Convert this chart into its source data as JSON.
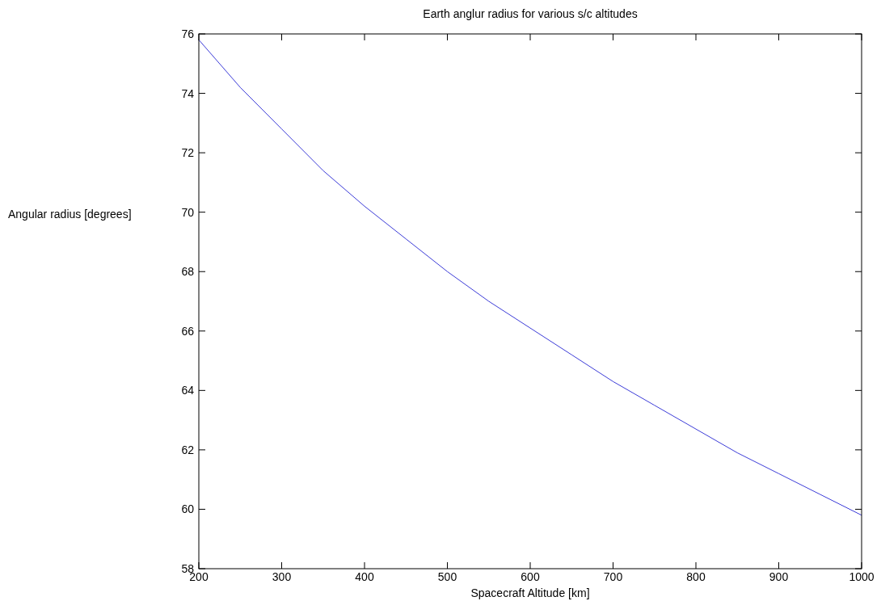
{
  "chart_data": {
    "type": "line",
    "title": "Earth anglur radius for various s/c altitudes",
    "xlabel": "Spacecraft Altitude [km]",
    "ylabel": "Angular radius [degrees]",
    "x": [
      200,
      250,
      300,
      350,
      400,
      450,
      500,
      550,
      600,
      650,
      700,
      750,
      800,
      850,
      900,
      950,
      1000
    ],
    "series": [
      {
        "color": "#3c3cd8",
        "values": [
          75.8,
          74.2,
          72.8,
          71.4,
          70.2,
          69.1,
          68.0,
          67.0,
          66.1,
          65.2,
          64.3,
          63.5,
          62.7,
          61.9,
          61.2,
          60.5,
          59.8
        ]
      }
    ],
    "xlim": [
      200,
      1000
    ],
    "ylim": [
      58,
      76
    ],
    "xticks": [
      200,
      300,
      400,
      500,
      600,
      700,
      800,
      900,
      1000
    ],
    "yticks": [
      58,
      60,
      62,
      64,
      66,
      68,
      70,
      72,
      74,
      76
    ],
    "grid": false
  }
}
